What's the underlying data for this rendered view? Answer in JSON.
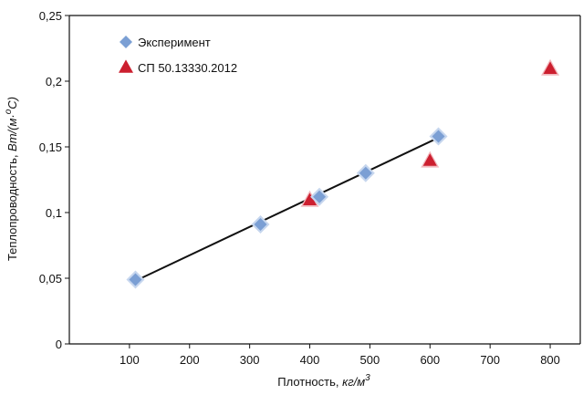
{
  "chart_data": {
    "type": "scatter",
    "xlabel_main": "Плотность, ",
    "xlabel_unit": "кг/м",
    "xlabel_sup": "3",
    "ylabel_main": "Теплопроводность, ",
    "ylabel_unit": "Вт/(м·",
    "ylabel_sup": "о",
    "ylabel_end": "С)",
    "xlim": [
      0,
      850
    ],
    "ylim": [
      0,
      0.25
    ],
    "x_ticks": [
      100,
      200,
      300,
      400,
      500,
      600,
      700,
      800
    ],
    "x_tick_labels": [
      "100",
      "200",
      "300",
      "400",
      "500",
      "600",
      "700",
      "800"
    ],
    "y_ticks": [
      0,
      0.05,
      0.1,
      0.15,
      0.2,
      0.25
    ],
    "y_tick_labels": [
      "0",
      "0,05",
      "0,1",
      "0,15",
      "0,2",
      "0,25"
    ],
    "grid": false,
    "legend_position": "top-left",
    "series": [
      {
        "name": "Эксперимент",
        "marker": "diamond",
        "color": "#7b9fd4",
        "points": [
          [
            110,
            0.049
          ],
          [
            318,
            0.091
          ],
          [
            416,
            0.112
          ],
          [
            493,
            0.13
          ],
          [
            614,
            0.158
          ]
        ]
      },
      {
        "name": "СП 50.13330.2012",
        "marker": "triangle",
        "color": "#cc1f2f",
        "points": [
          [
            400,
            0.11
          ],
          [
            600,
            0.14
          ],
          [
            800,
            0.21
          ]
        ]
      }
    ],
    "trendline": {
      "color": "#111111",
      "from": [
        110,
        0.048
      ],
      "to": [
        614,
        0.157
      ]
    }
  }
}
